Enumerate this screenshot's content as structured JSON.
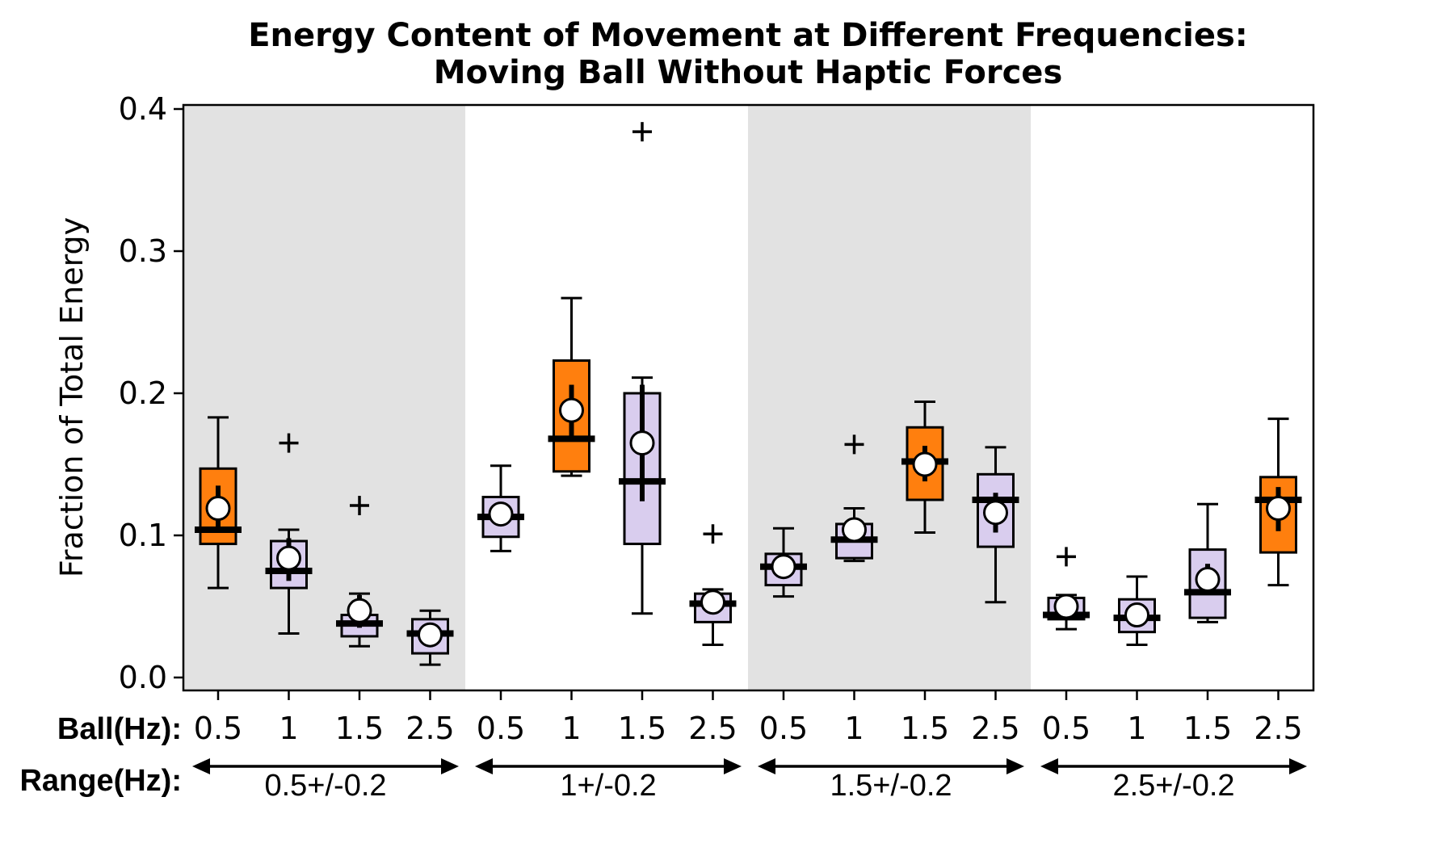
{
  "chart_data": {
    "type": "box",
    "title": [
      "Energy Content of Movement at Different Frequencies:",
      "Moving Ball Without Haptic Forces"
    ],
    "ylabel": "Fraction of Total Energy",
    "ylim": [
      -0.01,
      0.41
    ],
    "yticks": [
      0.0,
      0.1,
      0.2,
      0.3,
      0.4
    ],
    "ytick_labels": [
      "0.0",
      "0.1",
      "0.2",
      "0.3",
      "0.4"
    ],
    "row_labels": {
      "ball": "Ball(Hz):",
      "range": "Range(Hz):"
    },
    "colors": {
      "highlight": "#ff7f0e",
      "normal": "#d9cdee",
      "shade": "#e2e2e2",
      "mean_marker": "#ffffff",
      "edge": "#000000"
    },
    "groups": [
      {
        "range": "0.5+/-0.2",
        "shaded": true,
        "boxes": [
          {
            "ball": "0.5",
            "highlight": true,
            "q1": 0.094,
            "median": 0.104,
            "q3": 0.147,
            "whisker_low": 0.063,
            "whisker_high": 0.183,
            "mean": 0.119,
            "ci": [
              0.106,
              0.135
            ],
            "outliers": []
          },
          {
            "ball": "1",
            "highlight": false,
            "q1": 0.063,
            "median": 0.075,
            "q3": 0.096,
            "whisker_low": 0.031,
            "whisker_high": 0.104,
            "mean": 0.084,
            "ci": [
              0.068,
              0.098
            ],
            "outliers": [
              0.165
            ]
          },
          {
            "ball": "1.5",
            "highlight": false,
            "q1": 0.029,
            "median": 0.038,
            "q3": 0.044,
            "whisker_low": 0.022,
            "whisker_high": 0.059,
            "mean": 0.047,
            "ci": [
              0.035,
              0.058
            ],
            "outliers": [
              0.121
            ]
          },
          {
            "ball": "2.5",
            "highlight": false,
            "q1": 0.017,
            "median": 0.031,
            "q3": 0.041,
            "whisker_low": 0.009,
            "whisker_high": 0.047,
            "mean": 0.03,
            "ci": [
              0.023,
              0.037
            ],
            "outliers": []
          }
        ]
      },
      {
        "range": "1+/-0.2",
        "shaded": false,
        "boxes": [
          {
            "ball": "0.5",
            "highlight": false,
            "q1": 0.099,
            "median": 0.113,
            "q3": 0.127,
            "whisker_low": 0.089,
            "whisker_high": 0.149,
            "mean": 0.115,
            "ci": [
              0.108,
              0.122
            ],
            "outliers": []
          },
          {
            "ball": "1",
            "highlight": true,
            "q1": 0.145,
            "median": 0.168,
            "q3": 0.223,
            "whisker_low": 0.142,
            "whisker_high": 0.267,
            "mean": 0.188,
            "ci": [
              0.168,
              0.206
            ],
            "outliers": []
          },
          {
            "ball": "1.5",
            "highlight": false,
            "q1": 0.094,
            "median": 0.138,
            "q3": 0.2,
            "whisker_low": 0.045,
            "whisker_high": 0.211,
            "mean": 0.165,
            "ci": [
              0.124,
              0.206
            ],
            "outliers": [
              0.384
            ]
          },
          {
            "ball": "2.5",
            "highlight": false,
            "q1": 0.039,
            "median": 0.052,
            "q3": 0.059,
            "whisker_low": 0.023,
            "whisker_high": 0.062,
            "mean": 0.053,
            "ci": [
              0.046,
              0.06
            ],
            "outliers": [
              0.101
            ]
          }
        ]
      },
      {
        "range": "1.5+/-0.2",
        "shaded": true,
        "boxes": [
          {
            "ball": "0.5",
            "highlight": false,
            "q1": 0.065,
            "median": 0.078,
            "q3": 0.087,
            "whisker_low": 0.057,
            "whisker_high": 0.105,
            "mean": 0.078,
            "ci": [
              0.072,
              0.086
            ],
            "outliers": []
          },
          {
            "ball": "1",
            "highlight": false,
            "q1": 0.084,
            "median": 0.097,
            "q3": 0.108,
            "whisker_low": 0.082,
            "whisker_high": 0.119,
            "mean": 0.104,
            "ci": [
              0.095,
              0.112
            ],
            "outliers": [
              0.164
            ]
          },
          {
            "ball": "1.5",
            "highlight": true,
            "q1": 0.125,
            "median": 0.152,
            "q3": 0.176,
            "whisker_low": 0.102,
            "whisker_high": 0.194,
            "mean": 0.15,
            "ci": [
              0.138,
              0.163
            ],
            "outliers": []
          },
          {
            "ball": "2.5",
            "highlight": false,
            "q1": 0.092,
            "median": 0.125,
            "q3": 0.143,
            "whisker_low": 0.053,
            "whisker_high": 0.162,
            "mean": 0.116,
            "ci": [
              0.102,
              0.13
            ],
            "outliers": []
          }
        ]
      },
      {
        "range": "2.5+/-0.2",
        "shaded": false,
        "boxes": [
          {
            "ball": "0.5",
            "highlight": false,
            "q1": 0.041,
            "median": 0.044,
            "q3": 0.056,
            "whisker_low": 0.034,
            "whisker_high": 0.058,
            "mean": 0.05,
            "ci": [
              0.044,
              0.056
            ],
            "outliers": [
              0.085
            ]
          },
          {
            "ball": "1",
            "highlight": false,
            "q1": 0.032,
            "median": 0.042,
            "q3": 0.055,
            "whisker_low": 0.023,
            "whisker_high": 0.071,
            "mean": 0.044,
            "ci": [
              0.037,
              0.05
            ],
            "outliers": []
          },
          {
            "ball": "1.5",
            "highlight": false,
            "q1": 0.042,
            "median": 0.06,
            "q3": 0.09,
            "whisker_low": 0.039,
            "whisker_high": 0.122,
            "mean": 0.069,
            "ci": [
              0.058,
              0.08
            ],
            "outliers": []
          },
          {
            "ball": "2.5",
            "highlight": true,
            "q1": 0.088,
            "median": 0.125,
            "q3": 0.141,
            "whisker_low": 0.065,
            "whisker_high": 0.182,
            "mean": 0.119,
            "ci": [
              0.103,
              0.134
            ],
            "outliers": []
          }
        ]
      }
    ]
  }
}
